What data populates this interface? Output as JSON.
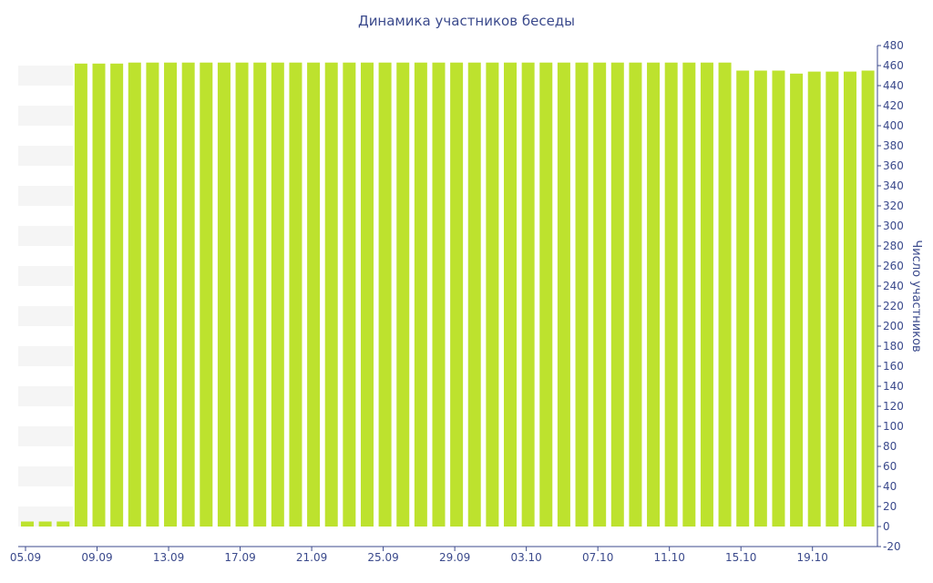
{
  "chart_data": {
    "type": "bar",
    "title": "Динамика участников беседы",
    "xlabel": "",
    "ylabel": "Число участников",
    "ylim": [
      -20,
      480
    ],
    "y_ticks": [
      -20,
      0,
      20,
      40,
      60,
      80,
      100,
      120,
      140,
      160,
      180,
      200,
      220,
      240,
      260,
      280,
      300,
      320,
      340,
      360,
      380,
      400,
      420,
      440,
      460,
      480
    ],
    "x_tick_labels": [
      "05.09",
      "09.09",
      "13.09",
      "17.09",
      "21.09",
      "25.09",
      "29.09",
      "03.10",
      "07.10",
      "11.10",
      "15.10",
      "19.10"
    ],
    "y_axis_position": "right",
    "grid": "alternating horizontal bands",
    "bar_color": "#bde22e",
    "text_color": "#3b4a8c",
    "categories": [
      "05.09",
      "06.09",
      "07.09",
      "08.09",
      "09.09",
      "10.09",
      "11.09",
      "12.09",
      "13.09",
      "14.09",
      "15.09",
      "16.09",
      "17.09",
      "18.09",
      "19.09",
      "20.09",
      "21.09",
      "22.09",
      "23.09",
      "24.09",
      "25.09",
      "26.09",
      "27.09",
      "28.09",
      "29.09",
      "30.09",
      "01.10",
      "02.10",
      "03.10",
      "04.10",
      "05.10",
      "06.10",
      "07.10",
      "08.10",
      "09.10",
      "10.10",
      "11.10",
      "12.10",
      "13.10",
      "14.10",
      "15.10",
      "16.10",
      "17.10",
      "18.10",
      "19.10",
      "20.10",
      "21.10",
      "22.10"
    ],
    "values": [
      5,
      5,
      5,
      462,
      462,
      462,
      463,
      463,
      463,
      463,
      463,
      463,
      463,
      463,
      463,
      463,
      463,
      463,
      463,
      463,
      463,
      463,
      463,
      463,
      463,
      463,
      463,
      463,
      463,
      463,
      463,
      463,
      463,
      463,
      463,
      463,
      463,
      463,
      463,
      463,
      455,
      455,
      455,
      452,
      454,
      454,
      454,
      455
    ]
  }
}
